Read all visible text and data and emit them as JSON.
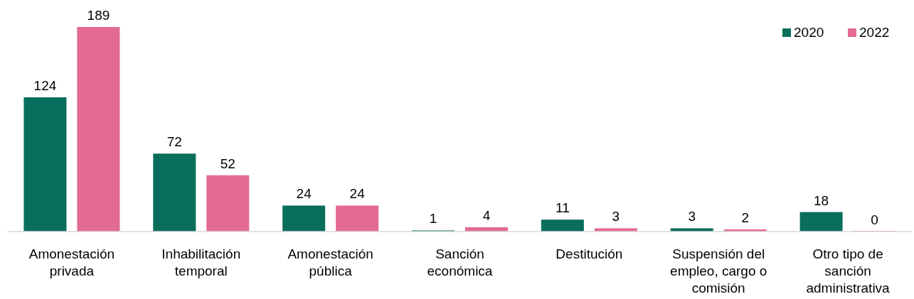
{
  "chart_data": {
    "type": "bar",
    "categories": [
      "Amonestación privada",
      "Inhabilitación temporal",
      "Amonestación pública",
      "Sanción económica",
      "Destitución",
      "Suspensión del empleo, cargo o comisión",
      "Otro tipo de sanción administrativa"
    ],
    "series": [
      {
        "name": "2020",
        "color": "#0a6e5c",
        "values": [
          124,
          72,
          24,
          1,
          11,
          3,
          18
        ]
      },
      {
        "name": "2022",
        "color": "#e36a93",
        "values": [
          189,
          52,
          24,
          4,
          3,
          2,
          0
        ]
      }
    ],
    "data_labels": true,
    "legend": "top right"
  }
}
